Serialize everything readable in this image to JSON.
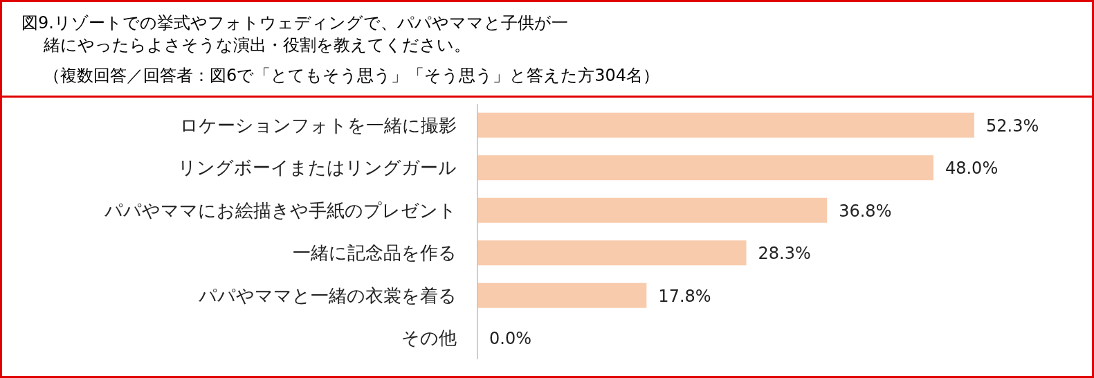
{
  "chart_data": {
    "type": "bar",
    "orientation": "horizontal",
    "title": "図9.リゾートでの挙式やフォトウェディングで、パパやママと子供が一緒にやったらよさそうな演出・役割を教えてください。",
    "subtitle": "（複数回答／回答者：図6で「とてもそう思う」「そう思う」と答えた方304名）",
    "categories": [
      "ロケーションフォトを一緒に撮影",
      "リングボーイまたはリングガール",
      "パパやママにお絵描きや手紙のプレゼント",
      "一緒に記念品を作る",
      "パパやママと一緒の衣裳を着る",
      "その他"
    ],
    "values": [
      52.3,
      48.0,
      36.8,
      28.3,
      17.8,
      0.0
    ],
    "value_labels": [
      "52.3%",
      "48.0%",
      "36.8%",
      "28.3%",
      "17.8%",
      "0.0%"
    ],
    "color": "#f8cbad"
  }
}
